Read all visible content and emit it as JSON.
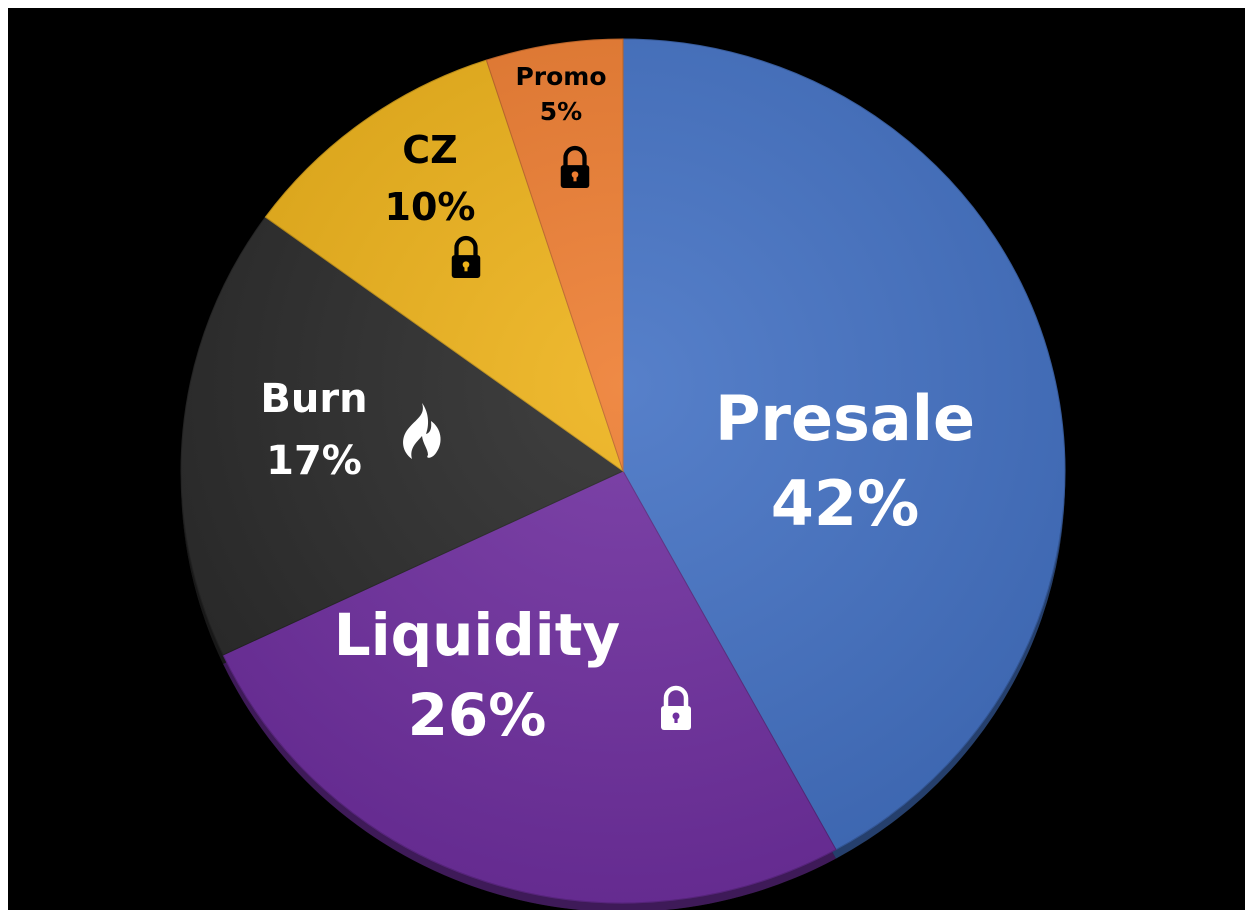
{
  "chart_data": {
    "type": "pie",
    "title": "",
    "start_angle_deg": 0,
    "direction": "clockwise",
    "slices": [
      {
        "name": "Presale",
        "value": 42,
        "label": "42%",
        "color": "#4472C4",
        "icon": "",
        "text_color": "#ffffff"
      },
      {
        "name": "Liquidity",
        "value": 26,
        "label": "26%",
        "color": "#7030A0",
        "icon": "lock-icon",
        "text_color": "#ffffff"
      },
      {
        "name": "Burn",
        "value": 17,
        "label": "17%",
        "color": "#2B2B2B",
        "icon": "fire-icon",
        "text_color": "#ffffff"
      },
      {
        "name": "CZ",
        "value": 10,
        "label": "10%",
        "color": "#EDB21A",
        "icon": "lock-icon",
        "text_color": "#000000"
      },
      {
        "name": "Promo",
        "value": 5,
        "label": "5%",
        "color": "#ED7D31",
        "icon": "lock-icon",
        "text_color": "#000000"
      }
    ]
  }
}
